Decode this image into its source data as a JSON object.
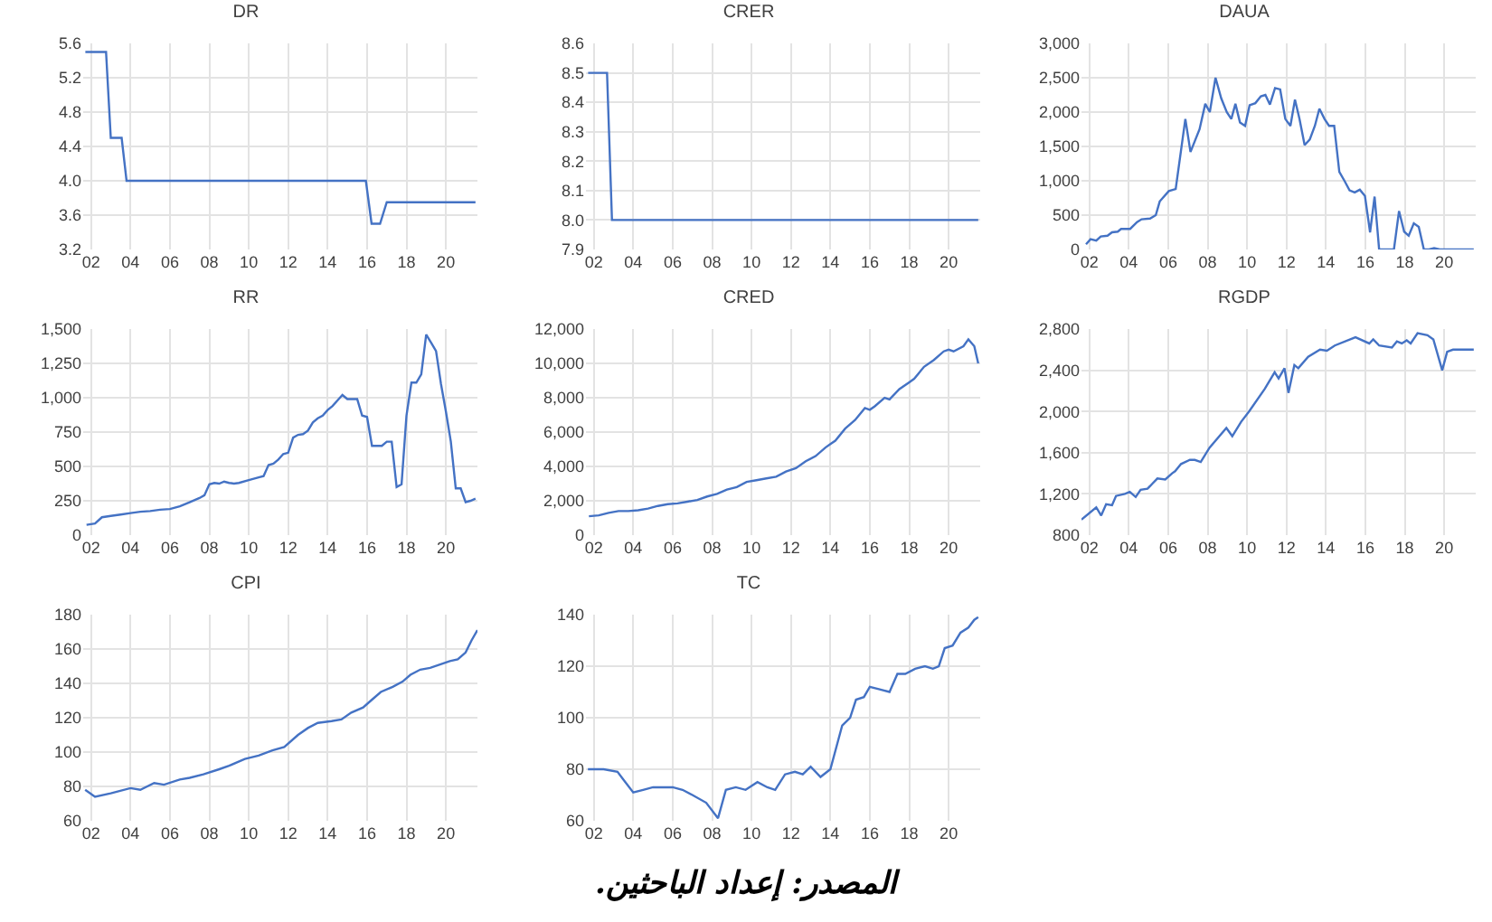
{
  "chart_data": [
    {
      "type": "line",
      "title": "DR",
      "x": [
        2001.71,
        2002.76,
        2003.0,
        2003.55,
        2003.8,
        2015.94,
        2016.23,
        2016.66,
        2017.0,
        2021.5
      ],
      "series": [
        {
          "color": "#4472c4",
          "values": [
            5.5,
            5.5,
            4.5,
            4.5,
            4.0,
            4.0,
            3.5,
            3.5,
            3.75,
            3.75
          ]
        }
      ],
      "xlim": [
        2001.6,
        2021.6
      ],
      "xticks": [
        {
          "value": 2002,
          "label": "02"
        },
        {
          "value": 2004,
          "label": "04"
        },
        {
          "value": 2006,
          "label": "06"
        },
        {
          "value": 2008,
          "label": "08"
        },
        {
          "value": 2010,
          "label": "10"
        },
        {
          "value": 2012,
          "label": "12"
        },
        {
          "value": 2014,
          "label": "14"
        },
        {
          "value": 2016,
          "label": "16"
        },
        {
          "value": 2018,
          "label": "18"
        },
        {
          "value": 2020,
          "label": "20"
        }
      ],
      "ylim": [
        3.2,
        5.6
      ],
      "yticks": [
        3.2,
        3.6,
        {
          "value": 4,
          "label": "4.0"
        },
        4.4,
        4.8,
        5.2,
        5.6
      ],
      "grid": true
    },
    {
      "type": "line",
      "title": "CRER",
      "x": [
        2001.71,
        2002.67,
        2002.92,
        2021.5
      ],
      "series": [
        {
          "color": "#4472c4",
          "values": [
            8.5,
            8.5,
            8.0,
            8.0
          ]
        }
      ],
      "xlim": [
        2001.6,
        2021.6
      ],
      "xticks": [
        {
          "value": 2002,
          "label": "02"
        },
        {
          "value": 2004,
          "label": "04"
        },
        {
          "value": 2006,
          "label": "06"
        },
        {
          "value": 2008,
          "label": "08"
        },
        {
          "value": 2010,
          "label": "10"
        },
        {
          "value": 2012,
          "label": "12"
        },
        {
          "value": 2014,
          "label": "14"
        },
        {
          "value": 2016,
          "label": "16"
        },
        {
          "value": 2018,
          "label": "18"
        },
        {
          "value": 2020,
          "label": "20"
        }
      ],
      "ylim": [
        7.9,
        8.6
      ],
      "yticks": [
        7.9,
        {
          "value": 8,
          "label": "8.0"
        },
        8.1,
        8.2,
        8.3,
        8.4,
        8.5,
        8.6
      ],
      "grid": true
    },
    {
      "type": "line",
      "title": "DAUA",
      "x": [
        2001.83,
        2002.06,
        2002.35,
        2002.58,
        2002.92,
        2003.15,
        2003.44,
        2003.61,
        2004.07,
        2004.42,
        2004.65,
        2005.08,
        2005.37,
        2005.57,
        2006.03,
        2006.38,
        2006.87,
        2007.13,
        2007.59,
        2007.88,
        2008.11,
        2008.4,
        2008.69,
        2008.97,
        2009.2,
        2009.41,
        2009.64,
        2009.9,
        2010.13,
        2010.42,
        2010.7,
        2010.93,
        2011.16,
        2011.42,
        2011.68,
        2011.94,
        2012.2,
        2012.43,
        2012.66,
        2012.92,
        2013.18,
        2013.44,
        2013.67,
        2013.93,
        2014.16,
        2014.42,
        2014.68,
        2014.94,
        2015.2,
        2015.46,
        2015.72,
        2015.98,
        2016.24,
        2016.47,
        2016.7,
        2016.96,
        2017.22,
        2017.45,
        2017.71,
        2017.97,
        2018.2,
        2018.46,
        2018.71,
        2018.97,
        2019.23,
        2019.49,
        2019.78,
        2021.5
      ],
      "series": [
        {
          "color": "#4472c4",
          "values": [
            75,
            150,
            130,
            190,
            200,
            250,
            260,
            300,
            300,
            400,
            440,
            450,
            500,
            700,
            850,
            880,
            1900,
            1420,
            1750,
            2120,
            2000,
            2500,
            2200,
            2000,
            1900,
            2120,
            1850,
            1800,
            2100,
            2130,
            2230,
            2250,
            2110,
            2350,
            2330,
            1900,
            1800,
            2180,
            1900,
            1520,
            1600,
            1800,
            2050,
            1900,
            1800,
            1800,
            1130,
            1000,
            860,
            830,
            870,
            780,
            250,
            770,
            0,
            0,
            0,
            0,
            560,
            260,
            200,
            380,
            330,
            0,
            0,
            20,
            0,
            0
          ]
        }
      ],
      "xlim": [
        2001.6,
        2021.6
      ],
      "xticks": [
        {
          "value": 2002,
          "label": "02"
        },
        {
          "value": 2004,
          "label": "04"
        },
        {
          "value": 2006,
          "label": "06"
        },
        {
          "value": 2008,
          "label": "08"
        },
        {
          "value": 2010,
          "label": "10"
        },
        {
          "value": 2012,
          "label": "12"
        },
        {
          "value": 2014,
          "label": "14"
        },
        {
          "value": 2016,
          "label": "16"
        },
        {
          "value": 2018,
          "label": "18"
        },
        {
          "value": 2020,
          "label": "20"
        }
      ],
      "ylim": [
        0,
        3000
      ],
      "yticks": [
        0,
        500,
        {
          "value": 1000,
          "label": "1,000"
        },
        {
          "value": 1500,
          "label": "1,500"
        },
        {
          "value": 2000,
          "label": "2,000"
        },
        {
          "value": 2500,
          "label": "2,500"
        },
        {
          "value": 3000,
          "label": "3,000"
        }
      ],
      "grid": true
    },
    {
      "type": "line",
      "title": "RR",
      "x": [
        2001.77,
        2002.2,
        2002.55,
        2003,
        2003.5,
        2004,
        2004.5,
        2005,
        2005.5,
        2006,
        2006.5,
        2007,
        2007.5,
        2007.75,
        2008,
        2008.25,
        2008.5,
        2008.75,
        2009,
        2009.25,
        2009.5,
        2010,
        2010.5,
        2010.75,
        2011,
        2011.25,
        2011.5,
        2011.75,
        2012,
        2012.25,
        2012.5,
        2012.75,
        2013,
        2013.25,
        2013.5,
        2013.75,
        2014,
        2014.25,
        2014.5,
        2014.75,
        2015,
        2015.25,
        2015.5,
        2015.75,
        2016,
        2016.25,
        2016.5,
        2016.75,
        2017,
        2017.25,
        2017.5,
        2017.75,
        2018,
        2018.25,
        2018.5,
        2018.75,
        2019,
        2019.25,
        2019.5,
        2019.75,
        2020,
        2020.25,
        2020.5,
        2020.75,
        2021,
        2021.25,
        2021.5
      ],
      "series": [
        {
          "color": "#4472c4",
          "values": [
            75,
            85,
            130,
            140,
            150,
            160,
            170,
            175,
            185,
            190,
            210,
            240,
            270,
            290,
            370,
            380,
            375,
            390,
            380,
            375,
            380,
            400,
            420,
            430,
            510,
            520,
            550,
            590,
            600,
            710,
            730,
            735,
            760,
            820,
            850,
            870,
            910,
            940,
            980,
            1020,
            990,
            990,
            990,
            870,
            860,
            650,
            650,
            650,
            680,
            680,
            350,
            370,
            870,
            1110,
            1110,
            1170,
            1460,
            1400,
            1340,
            1100,
            900,
            680,
            340,
            340,
            240,
            250,
            265
          ]
        }
      ],
      "xlim": [
        2001.6,
        2021.6
      ],
      "xticks": [
        {
          "value": 2002,
          "label": "02"
        },
        {
          "value": 2004,
          "label": "04"
        },
        {
          "value": 2006,
          "label": "06"
        },
        {
          "value": 2008,
          "label": "08"
        },
        {
          "value": 2010,
          "label": "10"
        },
        {
          "value": 2012,
          "label": "12"
        },
        {
          "value": 2014,
          "label": "14"
        },
        {
          "value": 2016,
          "label": "16"
        },
        {
          "value": 2018,
          "label": "18"
        },
        {
          "value": 2020,
          "label": "20"
        }
      ],
      "ylim": [
        0,
        1500
      ],
      "yticks": [
        0,
        250,
        500,
        750,
        {
          "value": 1000,
          "label": "1,000"
        },
        {
          "value": 1250,
          "label": "1,250"
        },
        {
          "value": 1500,
          "label": "1,500"
        }
      ],
      "grid": true
    },
    {
      "type": "line",
      "title": "CRED",
      "x": [
        2001.75,
        2002.25,
        2002.75,
        2003.25,
        2003.75,
        2004.25,
        2004.75,
        2005.25,
        2005.75,
        2006.25,
        2006.75,
        2007.25,
        2007.75,
        2008.25,
        2008.75,
        2009.25,
        2009.75,
        2010.25,
        2010.75,
        2011.25,
        2011.75,
        2012.25,
        2012.75,
        2013.25,
        2013.75,
        2014,
        2014.25,
        2014.75,
        2015.25,
        2015.75,
        2016,
        2016.25,
        2016.75,
        2017,
        2017.5,
        2018,
        2018.25,
        2018.75,
        2019.25,
        2019.75,
        2020,
        2020.25,
        2020.75,
        2021,
        2021.3,
        2021.5
      ],
      "series": [
        {
          "color": "#4472c4",
          "values": [
            1100,
            1150,
            1300,
            1400,
            1400,
            1450,
            1550,
            1700,
            1800,
            1850,
            1950,
            2050,
            2250,
            2400,
            2650,
            2800,
            3100,
            3200,
            3300,
            3400,
            3700,
            3900,
            4300,
            4600,
            5100,
            5300,
            5500,
            6200,
            6700,
            7400,
            7300,
            7500,
            8000,
            7900,
            8500,
            8900,
            9100,
            9800,
            10200,
            10700,
            10800,
            10700,
            11000,
            11400,
            11000,
            10000
          ]
        }
      ],
      "xlim": [
        2001.6,
        2021.6
      ],
      "xticks": [
        {
          "value": 2002,
          "label": "02"
        },
        {
          "value": 2004,
          "label": "04"
        },
        {
          "value": 2006,
          "label": "06"
        },
        {
          "value": 2008,
          "label": "08"
        },
        {
          "value": 2010,
          "label": "10"
        },
        {
          "value": 2012,
          "label": "12"
        },
        {
          "value": 2014,
          "label": "14"
        },
        {
          "value": 2016,
          "label": "16"
        },
        {
          "value": 2018,
          "label": "18"
        },
        {
          "value": 2020,
          "label": "20"
        }
      ],
      "ylim": [
        0,
        12000
      ],
      "yticks": [
        0,
        {
          "value": 2000,
          "label": "2,000"
        },
        {
          "value": 4000,
          "label": "4,000"
        },
        {
          "value": 6000,
          "label": "6,000"
        },
        {
          "value": 8000,
          "label": "8,000"
        },
        {
          "value": 10000,
          "label": "10,000"
        },
        {
          "value": 12000,
          "label": "12,000"
        }
      ],
      "grid": true
    },
    {
      "type": "line",
      "title": "RGDP",
      "x": [
        2001.6,
        2002.35,
        2002.6,
        2002.85,
        2003.15,
        2003.35,
        2003.8,
        2004.05,
        2004.35,
        2004.6,
        2004.95,
        2005.2,
        2005.45,
        2005.85,
        2006.2,
        2006.35,
        2006.65,
        2007.1,
        2007.35,
        2007.65,
        2008.1,
        2008.95,
        2009.25,
        2009.7,
        2010.1,
        2010.9,
        2011.4,
        2011.6,
        2011.9,
        2012.1,
        2012.4,
        2012.6,
        2013.1,
        2013.7,
        2014.05,
        2014.45,
        2015.5,
        2016.2,
        2016.4,
        2016.7,
        2017.35,
        2017.6,
        2017.85,
        2018.1,
        2018.3,
        2018.65,
        2019.15,
        2019.45,
        2019.9,
        2020.15,
        2020.45,
        2021.5
      ],
      "series": [
        {
          "color": "#4472c4",
          "values": [
            950,
            1070,
            990,
            1100,
            1090,
            1180,
            1200,
            1220,
            1170,
            1240,
            1250,
            1300,
            1350,
            1340,
            1400,
            1420,
            1490,
            1530,
            1530,
            1510,
            1650,
            1840,
            1760,
            1900,
            2000,
            2220,
            2380,
            2320,
            2420,
            2180,
            2450,
            2420,
            2530,
            2600,
            2590,
            2640,
            2720,
            2660,
            2700,
            2640,
            2620,
            2680,
            2660,
            2690,
            2660,
            2760,
            2740,
            2700,
            2400,
            2580,
            2600,
            2600
          ]
        }
      ],
      "xlim": [
        2001.6,
        2021.6
      ],
      "xticks": [
        {
          "value": 2002,
          "label": "02"
        },
        {
          "value": 2004,
          "label": "04"
        },
        {
          "value": 2006,
          "label": "06"
        },
        {
          "value": 2008,
          "label": "08"
        },
        {
          "value": 2010,
          "label": "10"
        },
        {
          "value": 2012,
          "label": "12"
        },
        {
          "value": 2014,
          "label": "14"
        },
        {
          "value": 2016,
          "label": "16"
        },
        {
          "value": 2018,
          "label": "18"
        },
        {
          "value": 2020,
          "label": "20"
        }
      ],
      "ylim": [
        800,
        2800
      ],
      "yticks": [
        800,
        {
          "value": 1200,
          "label": "1,200"
        },
        {
          "value": 1600,
          "label": "1,600"
        },
        {
          "value": 2000,
          "label": "2,000"
        },
        {
          "value": 2400,
          "label": "2,400"
        },
        {
          "value": 2800,
          "label": "2,800"
        }
      ],
      "grid": true
    },
    {
      "type": "line",
      "title": "CPI",
      "x": [
        2001.7,
        2002.2,
        2003,
        2004,
        2004.5,
        2005.2,
        2005.7,
        2006.5,
        2007,
        2007.7,
        2008.5,
        2009,
        2009.8,
        2010.5,
        2011.2,
        2011.8,
        2012.5,
        2013,
        2013.5,
        2014.2,
        2014.7,
        2015.2,
        2015.8,
        2016.2,
        2016.7,
        2017.3,
        2017.8,
        2018.2,
        2018.7,
        2019.2,
        2019.7,
        2020.2,
        2020.6,
        2021,
        2021.3,
        2021.6
      ],
      "series": [
        {
          "color": "#4472c4",
          "values": [
            78,
            74,
            76,
            79,
            78,
            82,
            81,
            84,
            85,
            87,
            90,
            92,
            96,
            98,
            101,
            103,
            110,
            114,
            117,
            118,
            119,
            123,
            126,
            130,
            135,
            138,
            141,
            145,
            148,
            149,
            151,
            153,
            154,
            158,
            165,
            171
          ]
        }
      ],
      "xlim": [
        2001.6,
        2021.6
      ],
      "xticks": [
        {
          "value": 2002,
          "label": "02"
        },
        {
          "value": 2004,
          "label": "04"
        },
        {
          "value": 2006,
          "label": "06"
        },
        {
          "value": 2008,
          "label": "08"
        },
        {
          "value": 2010,
          "label": "10"
        },
        {
          "value": 2012,
          "label": "12"
        },
        {
          "value": 2014,
          "label": "14"
        },
        {
          "value": 2016,
          "label": "16"
        },
        {
          "value": 2018,
          "label": "18"
        },
        {
          "value": 2020,
          "label": "20"
        }
      ],
      "ylim": [
        60,
        180
      ],
      "yticks": [
        60,
        80,
        100,
        120,
        140,
        160,
        180
      ],
      "grid": true
    },
    {
      "type": "line",
      "title": "TC",
      "x": [
        2001.7,
        2002.5,
        2003.2,
        2003.5,
        2004,
        2004.5,
        2005,
        2006,
        2006.5,
        2007,
        2007.7,
        2008.3,
        2008.7,
        2009.2,
        2009.7,
        2010.3,
        2010.8,
        2011.2,
        2011.7,
        2012.2,
        2012.6,
        2013,
        2013.5,
        2014,
        2014.6,
        2015,
        2015.3,
        2015.7,
        2016,
        2016.5,
        2017,
        2017.4,
        2017.8,
        2018.3,
        2018.8,
        2019.2,
        2019.5,
        2019.8,
        2020.2,
        2020.6,
        2021,
        2021.3,
        2021.5
      ],
      "series": [
        {
          "color": "#4472c4",
          "values": [
            80,
            80,
            79,
            76,
            71,
            72,
            73,
            73,
            72,
            70,
            67,
            61,
            72,
            73,
            72,
            75,
            73,
            72,
            78,
            79,
            78,
            81,
            77,
            80,
            97,
            100,
            107,
            108,
            112,
            111,
            110,
            117,
            117,
            119,
            120,
            119,
            120,
            127,
            128,
            133,
            135,
            138,
            139
          ]
        }
      ],
      "xlim": [
        2001.6,
        2021.6
      ],
      "xticks": [
        {
          "value": 2002,
          "label": "02"
        },
        {
          "value": 2004,
          "label": "04"
        },
        {
          "value": 2006,
          "label": "06"
        },
        {
          "value": 2008,
          "label": "08"
        },
        {
          "value": 2010,
          "label": "10"
        },
        {
          "value": 2012,
          "label": "12"
        },
        {
          "value": 2014,
          "label": "14"
        },
        {
          "value": 2016,
          "label": "16"
        },
        {
          "value": 2018,
          "label": "18"
        },
        {
          "value": 2020,
          "label": "20"
        }
      ],
      "ylim": [
        60,
        140
      ],
      "yticks": [
        60,
        80,
        100,
        120,
        140
      ],
      "grid": true,
      "annotations": [
        "المصدر: إعداد الباحثين."
      ]
    }
  ]
}
